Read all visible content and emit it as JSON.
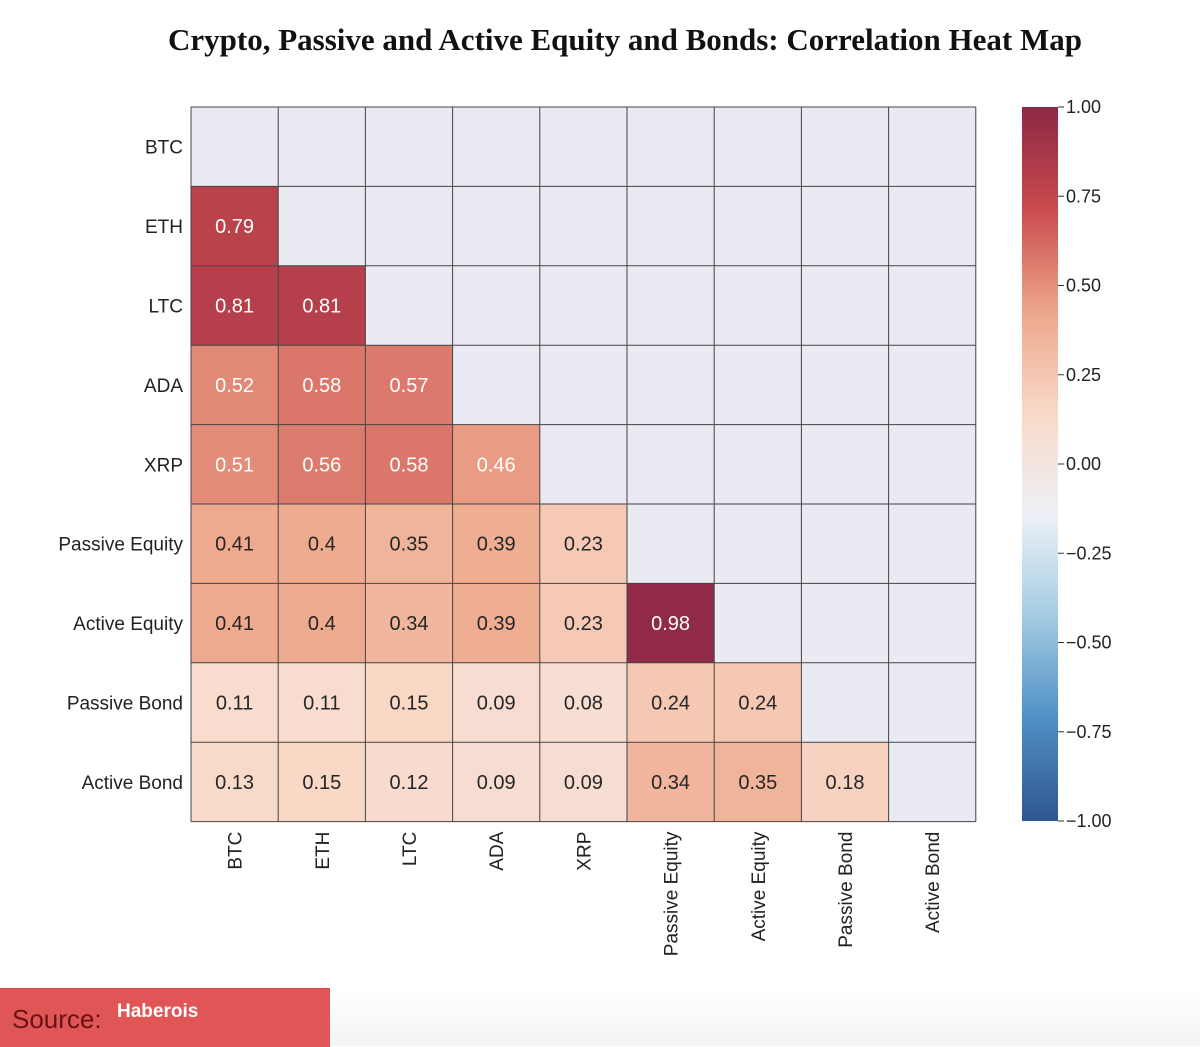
{
  "title": "Crypto, Passive and Active Equity and Bonds: Correlation Heat Map",
  "source": {
    "label": "Source:",
    "value": "Haberois"
  },
  "colors": {
    "background_cell": "#e9eaf2",
    "grid_line": "#444444",
    "scale_stops": [
      "#30568f",
      "#4f8fc5",
      "#a3cbe2",
      "#edf1f6",
      "#f9d9c8",
      "#eda68a",
      "#c94b4d",
      "#8c2845"
    ]
  },
  "chart_data": {
    "type": "heatmap",
    "title": "Crypto, Passive and Active Equity and Bonds: Correlation Heat Map",
    "labels": [
      "BTC",
      "ETH",
      "LTC",
      "ADA",
      "XRP",
      "Passive Equity",
      "Active Equity",
      "Passive Bond",
      "Active Bond"
    ],
    "mask": "lower-triangle",
    "matrix": [
      [
        null,
        null,
        null,
        null,
        null,
        null,
        null,
        null,
        null
      ],
      [
        0.79,
        null,
        null,
        null,
        null,
        null,
        null,
        null,
        null
      ],
      [
        0.81,
        0.81,
        null,
        null,
        null,
        null,
        null,
        null,
        null
      ],
      [
        0.52,
        0.58,
        0.57,
        null,
        null,
        null,
        null,
        null,
        null
      ],
      [
        0.51,
        0.56,
        0.58,
        0.46,
        null,
        null,
        null,
        null,
        null
      ],
      [
        0.41,
        0.4,
        0.35,
        0.39,
        0.23,
        null,
        null,
        null,
        null
      ],
      [
        0.41,
        0.4,
        0.34,
        0.39,
        0.23,
        0.98,
        null,
        null,
        null
      ],
      [
        0.11,
        0.11,
        0.15,
        0.09,
        0.08,
        0.24,
        0.24,
        null,
        null
      ],
      [
        0.13,
        0.15,
        0.12,
        0.09,
        0.09,
        0.34,
        0.35,
        0.18,
        null
      ]
    ],
    "colorbar": {
      "range": [
        -1.0,
        1.0
      ],
      "ticks": [
        "1.00",
        "0.75",
        "0.50",
        "0.25",
        "0.00",
        "−0.25",
        "−0.50",
        "−0.75",
        "−1.00"
      ]
    }
  }
}
